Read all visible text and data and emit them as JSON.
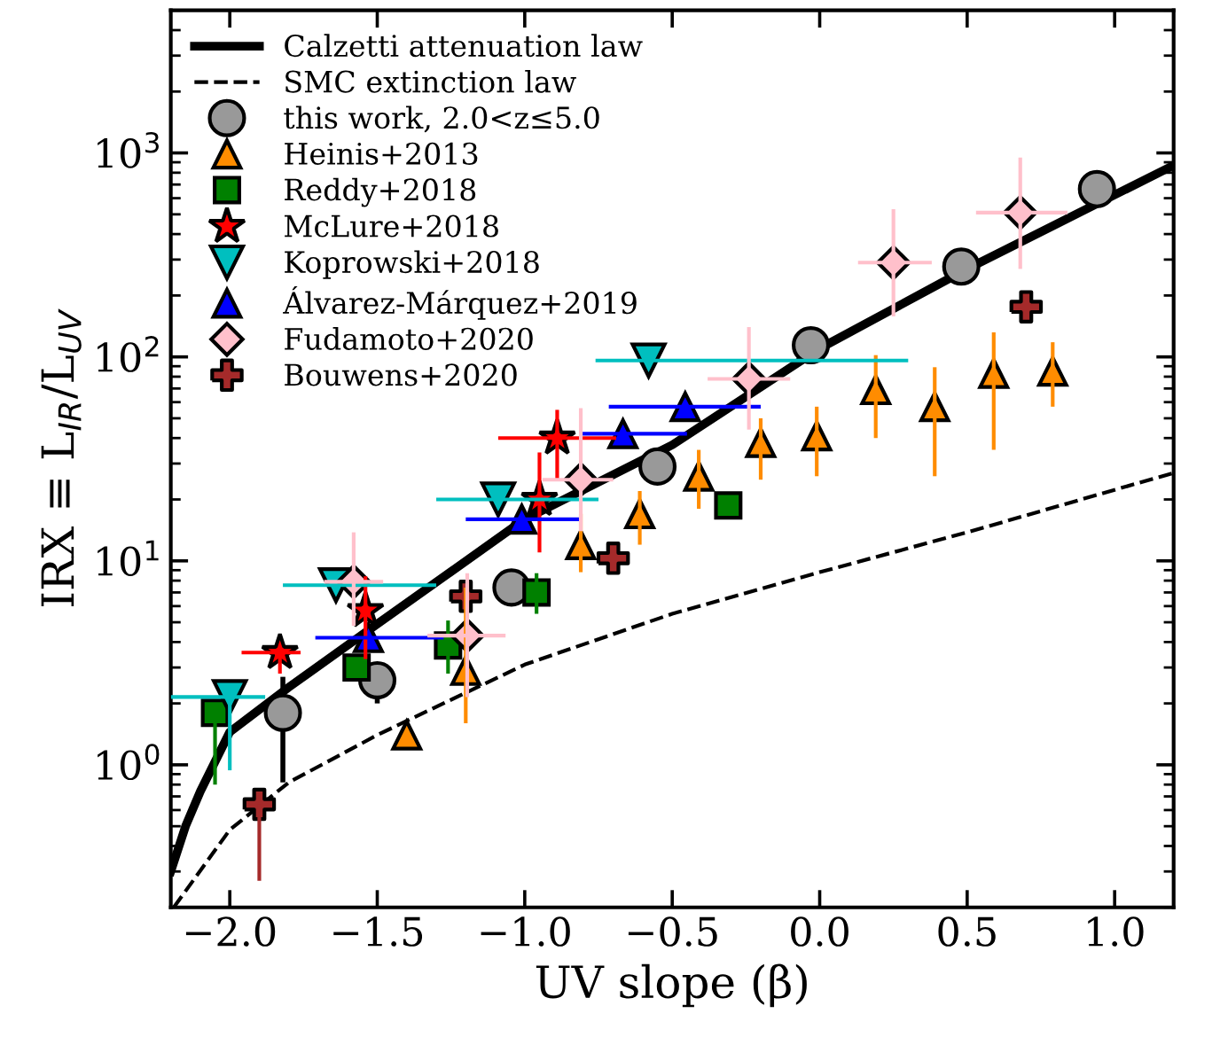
{
  "chart_data": {
    "type": "scatter",
    "xlabel": "UV slope (β)",
    "ylabel": "IRX ≡ L$_{IR}$/L$_{UV}$",
    "log": "y",
    "xlim": [
      -2.2,
      1.2
    ],
    "ylim": [
      0.2,
      5000
    ],
    "xticks": [
      {
        "value": -2.0,
        "label": "−2.0"
      },
      {
        "value": -1.5,
        "label": "−1.5"
      },
      {
        "value": -1.0,
        "label": "−1.0"
      },
      {
        "value": -0.5,
        "label": "−0.5"
      },
      {
        "value": 0.0,
        "label": "0.0"
      },
      {
        "value": 0.5,
        "label": "0.5"
      },
      {
        "value": 1.0,
        "label": "1.0"
      }
    ],
    "yticks": [
      {
        "value": 1,
        "label": "10$^{0}$"
      },
      {
        "value": 10,
        "label": "10$^{1}$"
      },
      {
        "value": 100,
        "label": "10$^{2}$"
      },
      {
        "value": 1000,
        "label": "10$^{3}$"
      }
    ],
    "grid": false,
    "legend": "top left",
    "series": [
      {
        "name": "Calzetti attenuation law",
        "type": "line",
        "line_style": "solid",
        "color": "#000000",
        "x": [
          -2.2,
          -2.15,
          -2.1,
          -2.0,
          -1.8,
          -1.5,
          -1.0,
          -0.5,
          0.0,
          0.5,
          1.2
        ],
        "values": [
          0.3,
          0.5,
          0.74,
          1.45,
          2.4,
          4.9,
          16,
          37,
          110,
          270,
          870
        ]
      },
      {
        "name": "SMC extinction law",
        "type": "line",
        "line_style": "dashed",
        "color": "#000000",
        "x": [
          -2.19,
          -2.0,
          -1.8,
          -1.5,
          -1.0,
          -0.5,
          0.0,
          0.5,
          1.2
        ],
        "values": [
          0.2,
          0.48,
          0.82,
          1.4,
          3.1,
          5.5,
          8.8,
          13.8,
          27
        ]
      },
      {
        "name": "this work, 2.0<z≤5.0",
        "marker": "circle",
        "color": "#999999",
        "x": [
          0.94,
          0.48,
          -0.03,
          -0.55,
          -1.045,
          -1.5,
          -1.82
        ],
        "values": [
          665,
          277,
          114,
          29,
          7.4,
          2.6,
          1.8
        ],
        "errors": [
          null,
          null,
          null,
          null,
          null,
          [
            2.0,
            2.6
          ],
          [
            0.82,
            2.7
          ]
        ]
      },
      {
        "name": "Heinis+2013",
        "marker": "triangle",
        "color": "#ff8c00",
        "x": [
          -0.2,
          -0.01,
          0.19,
          0.39,
          0.59,
          0.79,
          -0.41,
          -0.61,
          -0.81,
          -1.2,
          -1.4
        ],
        "values": [
          38,
          41,
          69,
          57,
          83,
          85,
          26,
          17,
          12,
          2.9,
          1.4
        ],
        "errors": [
          [
            25,
            50
          ],
          [
            26,
            57
          ],
          [
            40,
            102
          ],
          [
            26,
            89
          ],
          [
            35,
            132
          ],
          [
            57,
            118
          ],
          [
            18,
            35
          ],
          [
            12,
            22
          ],
          [
            8.8,
            17
          ],
          [
            1.6,
            7.4
          ],
          null
        ]
      },
      {
        "name": "Reddy+2018",
        "marker": "square",
        "color": "#008000",
        "x": [
          -2.05,
          -1.57,
          -1.26,
          -0.96,
          -0.31
        ],
        "values": [
          1.8,
          3.0,
          3.85,
          7.0,
          18.7
        ],
        "errors": [
          [
            0.8,
            1.8
          ],
          null,
          [
            2.8,
            5.1
          ],
          [
            5.5,
            8.7
          ],
          null
        ]
      },
      {
        "name": "McLure+2018",
        "marker": "star",
        "color": "#ff0000",
        "x": [
          -0.89,
          -0.95,
          -1.54,
          -1.83
        ],
        "values": [
          40,
          20,
          5.7,
          3.55
        ],
        "errors": [
          [
            25,
            55
          ],
          [
            11,
            34
          ],
          [
            3.3,
            8.4
          ],
          [
            2.8,
            3.55
          ]
        ],
        "xerrors": [
          [
            -1.09,
            -0.69
          ],
          null,
          null,
          [
            -1.96,
            -1.76
          ]
        ]
      },
      {
        "name": "Koprowski+2018",
        "marker": "triangle_down",
        "color": "#00bfbf",
        "x": [
          -0.58,
          -1.09,
          -1.64,
          -2.0
        ],
        "values": [
          96,
          20,
          7.6,
          2.15
        ],
        "errors": [
          null,
          null,
          null,
          [
            0.94,
            2.15
          ]
        ],
        "xerrors": [
          [
            -0.76,
            0.3
          ],
          [
            -1.3,
            -0.75
          ],
          [
            -1.82,
            -1.3
          ],
          [
            -2.2,
            -1.88
          ]
        ]
      },
      {
        "name": "Álvarez-Márquez+2019",
        "marker": "triangle",
        "color": "#0000ff",
        "x": [
          -0.456,
          -0.667,
          -1.01,
          -1.53
        ],
        "values": [
          57,
          42,
          16,
          4.2
        ],
        "xerrors": [
          [
            -0.715,
            -0.2
          ],
          [
            -0.81,
            -0.45
          ],
          [
            -1.2,
            -0.81
          ],
          [
            -1.71,
            -1.275
          ]
        ]
      },
      {
        "name": "Fudamoto+2020",
        "marker": "diamond",
        "color": "#ffc0cb",
        "x": [
          0.68,
          0.25,
          -0.24,
          -0.81,
          -1.58,
          -1.195
        ],
        "values": [
          510,
          290,
          78,
          25,
          7.9,
          4.3
        ],
        "errors": [
          [
            270,
            950
          ],
          [
            158,
            530
          ],
          [
            44,
            140
          ],
          [
            14,
            56
          ],
          [
            4.8,
            13.8
          ],
          [
            2.15,
            8.7
          ]
        ],
        "xerrors": [
          [
            0.53,
            0.84
          ],
          [
            0.13,
            0.38
          ],
          [
            -0.38,
            -0.1
          ],
          [
            -0.94,
            -0.7
          ],
          [
            -1.68,
            -1.48
          ],
          [
            -1.33,
            -1.065
          ]
        ]
      },
      {
        "name": "Bouwens+2020",
        "marker": "cross",
        "color": "#a52a2a",
        "x": [
          0.7,
          -0.7,
          -1.2,
          -1.9
        ],
        "values": [
          176,
          10.3,
          6.7,
          0.64
        ],
        "errors": [
          null,
          null,
          null,
          [
            0.27,
            0.64
          ]
        ]
      }
    ]
  }
}
